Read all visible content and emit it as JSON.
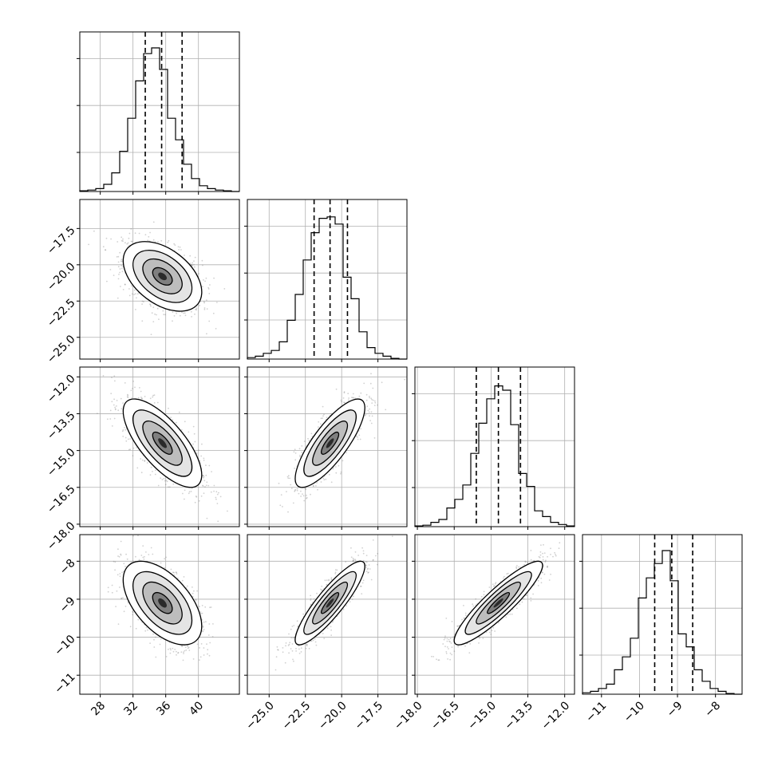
{
  "chart_data": {
    "type": "corner",
    "grid": true,
    "parameters": [
      {
        "range": [
          25.5,
          45
        ],
        "ticks": [
          28,
          32,
          36,
          40
        ],
        "tick_labels": [
          "28",
          "32",
          "36",
          "40"
        ],
        "quantiles": [
          33.5,
          35.5,
          38.0
        ],
        "hist": [
          0.005,
          0.01,
          0.02,
          0.05,
          0.13,
          0.28,
          0.51,
          0.77,
          0.96,
          1.0,
          0.85,
          0.51,
          0.36,
          0.19,
          0.09,
          0.04,
          0.02,
          0.01,
          0.005,
          0.0
        ],
        "center": 35.6,
        "sd": 2.4
      },
      {
        "range": [
          -26.5,
          -15.5
        ],
        "ticks": [
          -25.0,
          -22.5,
          -20.0,
          -17.5
        ],
        "tick_labels": [
          "−25.0",
          "−22.5",
          "−20.0",
          "−17.5"
        ],
        "quantiles": [
          -21.9,
          -20.8,
          -19.6
        ],
        "hist": [
          0.01,
          0.02,
          0.04,
          0.06,
          0.12,
          0.27,
          0.45,
          0.69,
          0.88,
          0.98,
          0.99,
          0.94,
          0.57,
          0.42,
          0.19,
          0.08,
          0.04,
          0.02,
          0.005,
          0.0
        ],
        "center": -20.8,
        "sd": 1.2
      },
      {
        "range": [
          -18.1,
          -11.6
        ],
        "ticks": [
          -18.0,
          -16.5,
          -15.0,
          -13.5,
          -12.0
        ],
        "tick_labels": [
          "−18.0",
          "−16.5",
          "−15.0",
          "−13.5",
          "−12.0"
        ],
        "quantiles": [
          -15.6,
          -14.7,
          -13.8
        ],
        "hist": [
          0.005,
          0.01,
          0.03,
          0.05,
          0.13,
          0.19,
          0.29,
          0.51,
          0.72,
          0.89,
          0.98,
          0.95,
          0.71,
          0.37,
          0.28,
          0.11,
          0.07,
          0.03,
          0.015,
          0.005
        ],
        "center": -14.7,
        "sd": 0.9
      },
      {
        "range": [
          -11.5,
          -7.3
        ],
        "ticks": [
          -11,
          -10,
          -9,
          -8
        ],
        "tick_labels": [
          "−11",
          "−10",
          "−9",
          "−8"
        ],
        "quantiles": [
          -9.6,
          -9.15,
          -8.6
        ],
        "hist": [
          0.01,
          0.02,
          0.04,
          0.07,
          0.17,
          0.26,
          0.39,
          0.67,
          0.81,
          0.91,
          1.0,
          0.79,
          0.42,
          0.33,
          0.17,
          0.09,
          0.04,
          0.02,
          0.005,
          0.0
        ],
        "center": -9.1,
        "sd": 0.55
      }
    ],
    "correlations": [
      {
        "x": 0,
        "y": 1,
        "r": -0.45
      },
      {
        "x": 0,
        "y": 2,
        "r": -0.72
      },
      {
        "x": 1,
        "y": 2,
        "r": 0.8
      },
      {
        "x": 0,
        "y": 3,
        "r": -0.55
      },
      {
        "x": 1,
        "y": 3,
        "r": 0.88
      },
      {
        "x": 2,
        "y": 3,
        "r": 0.9
      }
    ],
    "contour_levels": [
      0.5,
      1.0,
      1.5,
      2.0
    ],
    "colors": {
      "line": "#000000",
      "grid": "#b0b0b0",
      "points": "#7a7a7a"
    }
  }
}
